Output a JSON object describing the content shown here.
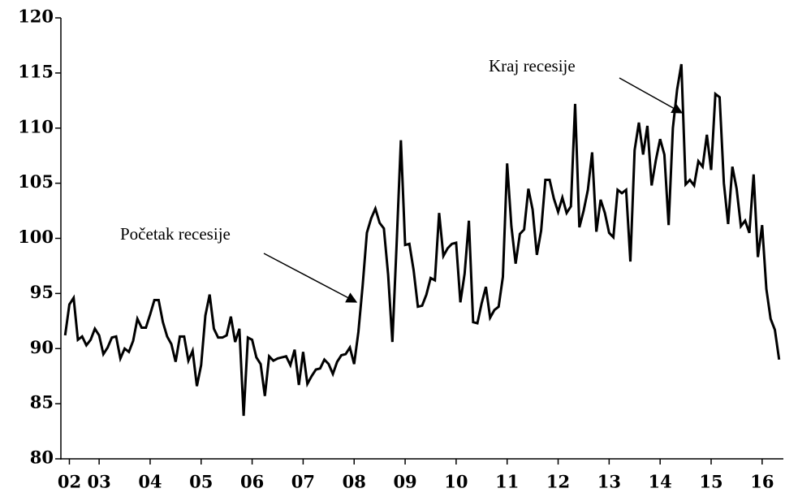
{
  "chart_data": {
    "type": "line",
    "annotations": [
      "Početak recesije",
      "Kraj recesije"
    ],
    "x": [
      0,
      1,
      2,
      3,
      4,
      5,
      6,
      7,
      8,
      9,
      10,
      11,
      12,
      13,
      14,
      15,
      16,
      17,
      18,
      19,
      20,
      21,
      22,
      23,
      24,
      25,
      26,
      27,
      28,
      29,
      30,
      31,
      32,
      33,
      34,
      35,
      36,
      37,
      38,
      39,
      40,
      41,
      42,
      43,
      44,
      45,
      46,
      47,
      48,
      49,
      50,
      51,
      52,
      53,
      54,
      55,
      56,
      57,
      58,
      59,
      60,
      61,
      62,
      63,
      64,
      65,
      66,
      67,
      68,
      69,
      70,
      71,
      72,
      73,
      74,
      75,
      76,
      77,
      78,
      79,
      80,
      81,
      82,
      83,
      84,
      85,
      86,
      87,
      88,
      89,
      90,
      91,
      92,
      93,
      94,
      95,
      96,
      97,
      98,
      99,
      100,
      101,
      102,
      103,
      104,
      105,
      106,
      107,
      108,
      109,
      110,
      111,
      112,
      113,
      114,
      115,
      116,
      117,
      118,
      119,
      120,
      121,
      122,
      123,
      124,
      125,
      126,
      127,
      128,
      129,
      130,
      131,
      132,
      133,
      134,
      135,
      136,
      137,
      138,
      139,
      140,
      141,
      142,
      143,
      144,
      145,
      146,
      147,
      148,
      149,
      150,
      151,
      152,
      153,
      154,
      155,
      156,
      157,
      158,
      159,
      160,
      161,
      162,
      163,
      164,
      165,
      166,
      167,
      168
    ],
    "values": [
      91.2,
      94,
      94.6,
      90.8,
      91.1,
      90.3,
      90.8,
      91.8,
      91.2,
      89.5,
      90.1,
      91,
      91.1,
      89.1,
      90,
      89.7,
      90.7,
      92.7,
      91.9,
      91.9,
      93.1,
      94.4,
      94.4,
      92.4,
      91.1,
      90.4,
      88.8,
      91.1,
      91.1,
      88.9,
      89.8,
      86.6,
      88.5,
      93,
      94.9,
      91.8,
      91,
      91,
      91.2,
      92.9,
      90.6,
      91.8,
      83.9,
      91,
      90.8,
      89.2,
      88.6,
      85.7,
      89.3,
      88.9,
      89.1,
      89.2,
      89.3,
      88.5,
      89.9,
      86.7,
      89.7,
      86.8,
      87.5,
      88.1,
      88.2,
      89,
      88.6,
      87.7,
      88.8,
      89.4,
      89.5,
      90.1,
      88.6,
      91.5,
      95.7,
      100.5,
      101.8,
      102.7,
      101.4,
      100.9,
      96.7,
      90.6,
      99.5,
      108.9,
      99.4,
      99.5,
      97.1,
      93.8,
      93.9,
      94.9,
      96.4,
      96.2,
      102.3,
      98.4,
      99.1,
      99.5,
      99.6,
      94.2,
      96.8,
      101.6,
      92.4,
      92.3,
      94.1,
      95.6,
      92.8,
      93.5,
      93.8,
      96.5,
      106.8,
      101.1,
      97.7,
      100.4,
      100.8,
      104.5,
      102.6,
      98.5,
      100.7,
      105.3,
      105.3,
      103.6,
      102.4,
      103.7,
      102.3,
      102.9,
      112.2,
      101,
      102.5,
      104.4,
      107.8,
      100.6,
      103.5,
      102.3,
      100.5,
      100.1,
      104.4,
      104.1,
      104.4,
      97.9,
      108,
      110.5,
      107.6,
      110.2,
      104.8,
      107.1,
      109,
      107.6,
      101.2,
      110,
      113.5,
      115.8,
      104.9,
      105.3,
      104.8,
      107,
      106.5,
      109.4,
      106.2,
      113.1,
      112.8,
      105,
      101.3,
      106.5,
      104.5,
      101.1,
      101.6,
      100.5,
      105.8,
      98.3,
      101.2,
      95.4,
      92.7,
      91.7,
      89
    ],
    "color": "#000000",
    "xlim": [
      -1,
      169
    ],
    "xticks": [
      {
        "value": 1,
        "label": "02"
      },
      {
        "value": 8,
        "label": "03"
      },
      {
        "value": 20,
        "label": "04"
      },
      {
        "value": 32,
        "label": "05"
      },
      {
        "value": 44,
        "label": "06"
      },
      {
        "value": 56,
        "label": "07"
      },
      {
        "value": 68,
        "label": "08"
      },
      {
        "value": 80,
        "label": "09"
      },
      {
        "value": 92,
        "label": "10"
      },
      {
        "value": 104,
        "label": "11"
      },
      {
        "value": 116,
        "label": "12"
      },
      {
        "value": 128,
        "label": "13"
      },
      {
        "value": 140,
        "label": "14"
      },
      {
        "value": 152,
        "label": "15"
      },
      {
        "value": 164,
        "label": "16"
      }
    ],
    "ylim": [
      80,
      120
    ],
    "yticks": [
      80,
      85,
      90,
      95,
      100,
      105,
      110,
      115,
      120
    ]
  }
}
